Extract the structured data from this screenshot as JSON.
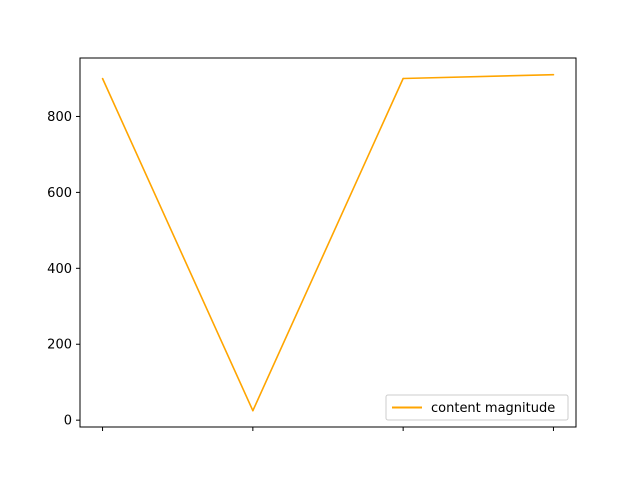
{
  "chart_data": {
    "type": "line",
    "title": "",
    "xlabel": "",
    "ylabel": "",
    "x": [
      0,
      1,
      2,
      3
    ],
    "x_tick_labels": [
      "",
      "",
      "",
      ""
    ],
    "series": [
      {
        "name": "content magnitude",
        "color": "#ffa500",
        "values": [
          900,
          25,
          900,
          910
        ]
      }
    ],
    "xlim": [
      -0.15,
      3.15
    ],
    "ylim": [
      -18,
      954
    ],
    "y_ticks": [
      0,
      200,
      400,
      600,
      800
    ],
    "grid": false,
    "legend_position": "lower right"
  }
}
